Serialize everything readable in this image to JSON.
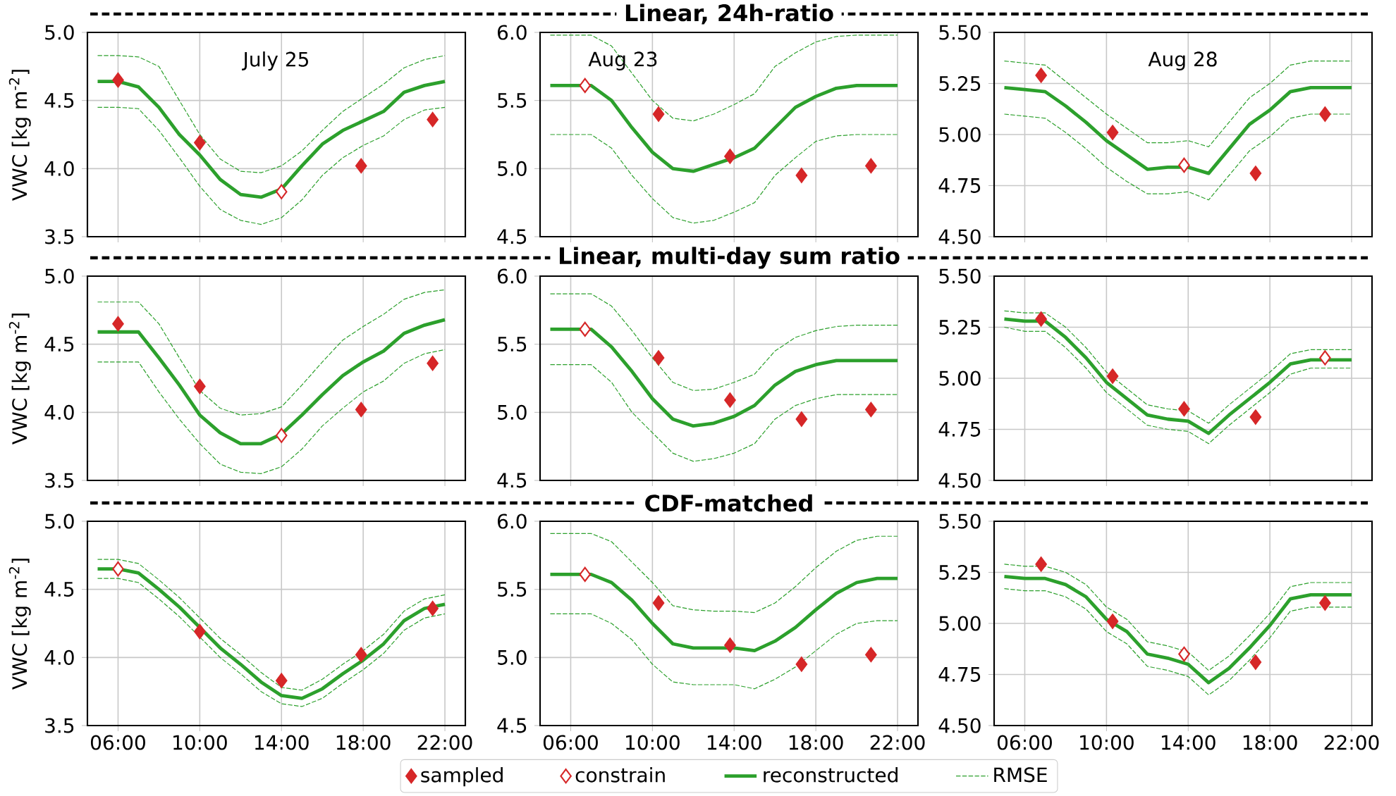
{
  "chart_data": [
    {
      "type": "line",
      "ylabel": "VWC [kg m$^{-2}$]",
      "annotations": [
        "July 25"
      ],
      "x": [
        5,
        6,
        7,
        8,
        9,
        10,
        11,
        12,
        13,
        14,
        15,
        16,
        17,
        18,
        19,
        20,
        21,
        22
      ],
      "xlim": [
        4.5,
        23
      ],
      "ylim": [
        3.5,
        5.0
      ],
      "xticks": [
        {
          "value": 6,
          "label": null
        },
        {
          "value": 10,
          "label": null
        },
        {
          "value": 14,
          "label": null
        },
        {
          "value": 18,
          "label": null
        },
        {
          "value": 22,
          "label": null
        }
      ],
      "yticks": [
        3.5,
        {
          "value": 4,
          "label": "4.0"
        },
        4.5,
        {
          "value": 5,
          "label": "5.0"
        }
      ],
      "grid": true,
      "tick_labels": "y",
      "series": [
        {
          "type": "line",
          "color": "#2ca02c",
          "line_style": "dashed",
          "values": [
            4.45,
            4.45,
            4.44,
            4.28,
            4.08,
            3.87,
            3.7,
            3.62,
            3.59,
            3.64,
            3.77,
            3.95,
            4.08,
            4.17,
            4.24,
            4.36,
            4.43,
            4.45
          ]
        },
        {
          "type": "line",
          "color": "#2ca02c",
          "line_style": "dashed",
          "values": [
            4.83,
            4.83,
            4.82,
            4.75,
            4.5,
            4.25,
            4.07,
            3.98,
            3.97,
            4.02,
            4.13,
            4.28,
            4.42,
            4.52,
            4.62,
            4.74,
            4.8,
            4.83
          ]
        },
        {
          "type": "line",
          "color": "#2ca02c",
          "line_style": "solid",
          "values": [
            4.64,
            4.64,
            4.6,
            4.45,
            4.25,
            4.1,
            3.92,
            3.81,
            3.79,
            3.85,
            4.02,
            4.18,
            4.28,
            4.35,
            4.42,
            4.56,
            4.61,
            4.64
          ]
        },
        {
          "type": "scatter",
          "color": "#d62728",
          "marker": "diamond",
          "x": [
            14
          ],
          "values": [
            3.83
          ]
        },
        {
          "type": "scatter",
          "color": "#d62728",
          "marker": "diamond",
          "x": [
            6,
            10,
            17.9,
            21.4
          ],
          "values": [
            4.65,
            4.19,
            4.02,
            4.36
          ]
        }
      ]
    },
    {
      "type": "line",
      "title": "Linear, 24h-ratio",
      "annotations": [
        "Aug 23"
      ],
      "x": [
        5,
        6,
        7,
        8,
        9,
        10,
        11,
        12,
        13,
        14,
        15,
        16,
        17,
        18,
        19,
        20,
        21,
        22
      ],
      "xlim": [
        4.5,
        23
      ],
      "ylim": [
        4.5,
        6.0
      ],
      "xticks": [
        {
          "value": 6,
          "label": null
        },
        {
          "value": 10,
          "label": null
        },
        {
          "value": 14,
          "label": null
        },
        {
          "value": 18,
          "label": null
        },
        {
          "value": 22,
          "label": null
        }
      ],
      "yticks": [
        4.5,
        {
          "value": 5,
          "label": "5.0"
        },
        5.5,
        {
          "value": 6,
          "label": "6.0"
        }
      ],
      "grid": true,
      "tick_labels": "y",
      "series": [
        {
          "type": "line",
          "color": "#2ca02c",
          "line_style": "dashed",
          "values": [
            5.25,
            5.25,
            5.25,
            5.15,
            4.95,
            4.78,
            4.64,
            4.6,
            4.62,
            4.68,
            4.75,
            4.95,
            5.08,
            5.2,
            5.24,
            5.25,
            5.25,
            5.25
          ]
        },
        {
          "type": "line",
          "color": "#2ca02c",
          "line_style": "dashed",
          "values": [
            5.98,
            5.98,
            5.98,
            5.9,
            5.7,
            5.5,
            5.37,
            5.35,
            5.4,
            5.47,
            5.55,
            5.75,
            5.85,
            5.93,
            5.97,
            5.98,
            5.98,
            5.98
          ]
        },
        {
          "type": "line",
          "color": "#2ca02c",
          "line_style": "solid",
          "values": [
            5.61,
            5.61,
            5.61,
            5.5,
            5.3,
            5.12,
            5.0,
            4.98,
            5.03,
            5.08,
            5.15,
            5.3,
            5.45,
            5.53,
            5.59,
            5.61,
            5.61,
            5.61
          ]
        },
        {
          "type": "scatter",
          "color": "#d62728",
          "marker": "diamond",
          "x": [
            6.7
          ],
          "values": [
            5.61
          ]
        },
        {
          "type": "scatter",
          "color": "#d62728",
          "marker": "diamond",
          "x": [
            10.3,
            13.8,
            17.3,
            20.7
          ],
          "values": [
            5.4,
            5.09,
            4.95,
            5.02
          ]
        }
      ]
    },
    {
      "type": "line",
      "annotations": [
        "Aug 28"
      ],
      "x": [
        5,
        6,
        7,
        8,
        9,
        10,
        11,
        12,
        13,
        14,
        15,
        16,
        17,
        18,
        19,
        20,
        21,
        22
      ],
      "xlim": [
        4.5,
        23
      ],
      "ylim": [
        4.5,
        5.5
      ],
      "xticks": [
        {
          "value": 6,
          "label": null
        },
        {
          "value": 10,
          "label": null
        },
        {
          "value": 14,
          "label": null
        },
        {
          "value": 18,
          "label": null
        },
        {
          "value": 22,
          "label": null
        }
      ],
      "yticks": [
        {
          "value": 4.5,
          "label": "4.50"
        },
        4.75,
        {
          "value": 5,
          "label": "5.00"
        },
        5.25,
        {
          "value": 5.5,
          "label": "5.50"
        }
      ],
      "grid": true,
      "tick_labels": "y",
      "series": [
        {
          "type": "line",
          "color": "#2ca02c",
          "line_style": "dashed",
          "values": [
            5.1,
            5.09,
            5.08,
            5.01,
            4.93,
            4.84,
            4.77,
            4.71,
            4.71,
            4.72,
            4.68,
            4.8,
            4.92,
            4.99,
            5.08,
            5.1,
            5.1,
            5.1
          ]
        },
        {
          "type": "line",
          "color": "#2ca02c",
          "line_style": "dashed",
          "values": [
            5.36,
            5.35,
            5.34,
            5.26,
            5.18,
            5.1,
            5.03,
            4.96,
            4.96,
            4.97,
            4.94,
            5.06,
            5.18,
            5.25,
            5.34,
            5.36,
            5.36,
            5.36
          ]
        },
        {
          "type": "line",
          "color": "#2ca02c",
          "line_style": "solid",
          "values": [
            5.23,
            5.22,
            5.21,
            5.14,
            5.06,
            4.97,
            4.9,
            4.83,
            4.84,
            4.84,
            4.81,
            4.93,
            5.05,
            5.12,
            5.21,
            5.23,
            5.23,
            5.23
          ]
        },
        {
          "type": "scatter",
          "color": "#d62728",
          "marker": "diamond",
          "x": [
            13.8
          ],
          "values": [
            4.85
          ]
        },
        {
          "type": "scatter",
          "color": "#d62728",
          "marker": "diamond",
          "x": [
            6.8,
            10.3,
            17.3,
            20.7
          ],
          "values": [
            5.29,
            5.01,
            4.81,
            5.1
          ]
        }
      ]
    },
    {
      "type": "line",
      "ylabel": "VWC [kg m$^{-2}$]",
      "x": [
        5,
        6,
        7,
        8,
        9,
        10,
        11,
        12,
        13,
        14,
        15,
        16,
        17,
        18,
        19,
        20,
        21,
        22
      ],
      "xlim": [
        4.5,
        23
      ],
      "ylim": [
        3.5,
        5.0
      ],
      "xticks": [
        {
          "value": 6,
          "label": null
        },
        {
          "value": 10,
          "label": null
        },
        {
          "value": 14,
          "label": null
        },
        {
          "value": 18,
          "label": null
        },
        {
          "value": 22,
          "label": null
        }
      ],
      "yticks": [
        3.5,
        {
          "value": 4,
          "label": "4.0"
        },
        4.5,
        {
          "value": 5,
          "label": "5.0"
        }
      ],
      "grid": true,
      "tick_labels": "y",
      "series": [
        {
          "type": "line",
          "color": "#2ca02c",
          "line_style": "dashed",
          "values": [
            4.37,
            4.37,
            4.37,
            4.15,
            3.95,
            3.77,
            3.62,
            3.56,
            3.55,
            3.6,
            3.73,
            3.9,
            4.03,
            4.15,
            4.23,
            4.36,
            4.43,
            4.46
          ]
        },
        {
          "type": "line",
          "color": "#2ca02c",
          "line_style": "dashed",
          "values": [
            4.81,
            4.81,
            4.81,
            4.65,
            4.4,
            4.16,
            4.03,
            3.98,
            3.99,
            4.04,
            4.2,
            4.37,
            4.53,
            4.63,
            4.72,
            4.83,
            4.88,
            4.9
          ]
        },
        {
          "type": "line",
          "color": "#2ca02c",
          "line_style": "solid",
          "values": [
            4.59,
            4.59,
            4.59,
            4.4,
            4.2,
            3.98,
            3.85,
            3.77,
            3.77,
            3.84,
            3.98,
            4.13,
            4.27,
            4.37,
            4.45,
            4.58,
            4.64,
            4.68
          ]
        },
        {
          "type": "scatter",
          "color": "#d62728",
          "marker": "diamond",
          "x": [
            14
          ],
          "values": [
            3.83
          ]
        },
        {
          "type": "scatter",
          "color": "#d62728",
          "marker": "diamond",
          "x": [
            6,
            10,
            17.9,
            21.4
          ],
          "values": [
            4.65,
            4.19,
            4.02,
            4.36
          ]
        }
      ]
    },
    {
      "type": "line",
      "title": "Linear, multi-day sum ratio",
      "x": [
        5,
        6,
        7,
        8,
        9,
        10,
        11,
        12,
        13,
        14,
        15,
        16,
        17,
        18,
        19,
        20,
        21,
        22
      ],
      "xlim": [
        4.5,
        23
      ],
      "ylim": [
        4.5,
        6.0
      ],
      "xticks": [
        {
          "value": 6,
          "label": null
        },
        {
          "value": 10,
          "label": null
        },
        {
          "value": 14,
          "label": null
        },
        {
          "value": 18,
          "label": null
        },
        {
          "value": 22,
          "label": null
        }
      ],
      "yticks": [
        4.5,
        {
          "value": 5,
          "label": "5.0"
        },
        5.5,
        {
          "value": 6,
          "label": "6.0"
        }
      ],
      "grid": true,
      "tick_labels": "y",
      "series": [
        {
          "type": "line",
          "color": "#2ca02c",
          "line_style": "dashed",
          "values": [
            5.35,
            5.35,
            5.35,
            5.22,
            5.0,
            4.85,
            4.7,
            4.64,
            4.66,
            4.7,
            4.77,
            4.95,
            5.05,
            5.1,
            5.13,
            5.13,
            5.13,
            5.13
          ]
        },
        {
          "type": "line",
          "color": "#2ca02c",
          "line_style": "dashed",
          "values": [
            5.87,
            5.87,
            5.87,
            5.78,
            5.6,
            5.4,
            5.22,
            5.16,
            5.17,
            5.22,
            5.28,
            5.45,
            5.55,
            5.6,
            5.63,
            5.64,
            5.64,
            5.64
          ]
        },
        {
          "type": "line",
          "color": "#2ca02c",
          "line_style": "solid",
          "values": [
            5.61,
            5.61,
            5.61,
            5.48,
            5.3,
            5.1,
            4.95,
            4.9,
            4.92,
            4.97,
            5.05,
            5.2,
            5.3,
            5.35,
            5.38,
            5.38,
            5.38,
            5.38
          ]
        },
        {
          "type": "scatter",
          "color": "#d62728",
          "marker": "diamond",
          "x": [
            6.7
          ],
          "values": [
            5.61
          ]
        },
        {
          "type": "scatter",
          "color": "#d62728",
          "marker": "diamond",
          "x": [
            10.3,
            13.8,
            17.3,
            20.7
          ],
          "values": [
            5.4,
            5.09,
            4.95,
            5.02
          ]
        }
      ]
    },
    {
      "type": "line",
      "x": [
        5,
        6,
        7,
        8,
        9,
        10,
        11,
        12,
        13,
        14,
        15,
        16,
        17,
        18,
        19,
        20,
        21,
        22
      ],
      "xlim": [
        4.5,
        23
      ],
      "ylim": [
        4.5,
        5.5
      ],
      "xticks": [
        {
          "value": 6,
          "label": null
        },
        {
          "value": 10,
          "label": null
        },
        {
          "value": 14,
          "label": null
        },
        {
          "value": 18,
          "label": null
        },
        {
          "value": 22,
          "label": null
        }
      ],
      "yticks": [
        {
          "value": 4.5,
          "label": "4.50"
        },
        4.75,
        {
          "value": 5,
          "label": "5.00"
        },
        5.25,
        {
          "value": 5.5,
          "label": "5.50"
        }
      ],
      "grid": true,
      "tick_labels": "y",
      "series": [
        {
          "type": "line",
          "color": "#2ca02c",
          "line_style": "dashed",
          "values": [
            5.25,
            5.23,
            5.23,
            5.15,
            5.05,
            4.93,
            4.85,
            4.77,
            4.75,
            4.74,
            4.68,
            4.77,
            4.85,
            4.93,
            5.02,
            5.05,
            5.05,
            5.05
          ]
        },
        {
          "type": "line",
          "color": "#2ca02c",
          "line_style": "dashed",
          "values": [
            5.33,
            5.32,
            5.32,
            5.25,
            5.15,
            5.03,
            4.95,
            4.87,
            4.85,
            4.84,
            4.78,
            4.87,
            4.95,
            5.03,
            5.12,
            5.14,
            5.14,
            5.14
          ]
        },
        {
          "type": "line",
          "color": "#2ca02c",
          "line_style": "solid",
          "values": [
            5.29,
            5.28,
            5.28,
            5.2,
            5.1,
            4.98,
            4.9,
            4.82,
            4.8,
            4.79,
            4.73,
            4.82,
            4.9,
            4.98,
            5.07,
            5.09,
            5.09,
            5.09
          ]
        },
        {
          "type": "scatter",
          "color": "#d62728",
          "marker": "diamond",
          "x": [
            20.7
          ],
          "values": [
            5.1
          ]
        },
        {
          "type": "scatter",
          "color": "#d62728",
          "marker": "diamond",
          "x": [
            6.8,
            10.3,
            13.8,
            17.3
          ],
          "values": [
            5.29,
            5.01,
            4.85,
            4.81
          ]
        }
      ]
    },
    {
      "type": "line",
      "ylabel": "VWC [kg m$^{-2}$]",
      "x": [
        5,
        6,
        7,
        8,
        9,
        10,
        11,
        12,
        13,
        14,
        15,
        16,
        17,
        18,
        19,
        20,
        21,
        22
      ],
      "xlim": [
        4.5,
        23
      ],
      "ylim": [
        3.5,
        5.0
      ],
      "xticks": [
        {
          "value": 6,
          "label": "06:00"
        },
        {
          "value": 10,
          "label": "10:00"
        },
        {
          "value": 14,
          "label": "14:00"
        },
        {
          "value": 18,
          "label": "18:00"
        },
        {
          "value": 22,
          "label": "22:00"
        }
      ],
      "yticks": [
        3.5,
        {
          "value": 4,
          "label": "4.0"
        },
        4.5,
        {
          "value": 5,
          "label": "5.0"
        }
      ],
      "grid": true,
      "series": [
        {
          "type": "line",
          "color": "#2ca02c",
          "line_style": "dashed",
          "values": [
            4.58,
            4.58,
            4.55,
            4.43,
            4.3,
            4.15,
            4.0,
            3.88,
            3.75,
            3.66,
            3.64,
            3.7,
            3.81,
            3.91,
            4.03,
            4.2,
            4.29,
            4.32
          ]
        },
        {
          "type": "line",
          "color": "#2ca02c",
          "line_style": "dashed",
          "values": [
            4.72,
            4.72,
            4.69,
            4.57,
            4.44,
            4.29,
            4.14,
            4.02,
            3.89,
            3.78,
            3.76,
            3.84,
            3.95,
            4.05,
            4.17,
            4.34,
            4.43,
            4.46
          ]
        },
        {
          "type": "line",
          "color": "#2ca02c",
          "line_style": "solid",
          "values": [
            4.65,
            4.65,
            4.62,
            4.5,
            4.37,
            4.22,
            4.07,
            3.95,
            3.82,
            3.72,
            3.7,
            3.77,
            3.88,
            3.98,
            4.1,
            4.27,
            4.36,
            4.39
          ]
        },
        {
          "type": "scatter",
          "color": "#d62728",
          "marker": "diamond",
          "x": [
            6
          ],
          "values": [
            4.65
          ]
        },
        {
          "type": "scatter",
          "color": "#d62728",
          "marker": "diamond",
          "x": [
            10,
            14,
            17.9,
            21.4
          ],
          "values": [
            4.19,
            3.83,
            4.02,
            4.36
          ]
        }
      ]
    },
    {
      "type": "line",
      "title": "CDF-matched",
      "legend": "bottom",
      "x": [
        5,
        6,
        7,
        8,
        9,
        10,
        11,
        12,
        13,
        14,
        15,
        16,
        17,
        18,
        19,
        20,
        21,
        22
      ],
      "xlim": [
        4.5,
        23
      ],
      "ylim": [
        4.5,
        6.0
      ],
      "xticks": [
        {
          "value": 6,
          "label": "06:00"
        },
        {
          "value": 10,
          "label": "10:00"
        },
        {
          "value": 14,
          "label": "14:00"
        },
        {
          "value": 18,
          "label": "18:00"
        },
        {
          "value": 22,
          "label": "22:00"
        }
      ],
      "yticks": [
        4.5,
        {
          "value": 5,
          "label": "5.0"
        },
        5.5,
        {
          "value": 6,
          "label": "6.0"
        }
      ],
      "grid": true,
      "series": [
        {
          "type": "line",
          "color": "#2ca02c",
          "line_style": "dashed",
          "values": [
            5.32,
            5.32,
            5.32,
            5.25,
            5.13,
            4.95,
            4.82,
            4.8,
            4.8,
            4.8,
            4.77,
            4.84,
            4.93,
            5.05,
            5.17,
            5.25,
            5.27,
            5.27
          ]
        },
        {
          "name": "RMSE",
          "type": "line",
          "color": "#2ca02c",
          "line_style": "dashed",
          "values": [
            5.91,
            5.91,
            5.91,
            5.85,
            5.7,
            5.55,
            5.38,
            5.35,
            5.34,
            5.34,
            5.33,
            5.4,
            5.52,
            5.66,
            5.78,
            5.86,
            5.89,
            5.89
          ]
        },
        {
          "name": "reconstructed",
          "type": "line",
          "color": "#2ca02c",
          "line_style": "solid",
          "values": [
            5.61,
            5.61,
            5.61,
            5.55,
            5.42,
            5.25,
            5.1,
            5.07,
            5.07,
            5.07,
            5.05,
            5.12,
            5.22,
            5.35,
            5.47,
            5.55,
            5.58,
            5.58
          ]
        },
        {
          "name": "constrain",
          "type": "scatter",
          "color": "#d62728",
          "marker": "diamond",
          "x": [
            6.7
          ],
          "values": [
            5.61
          ]
        },
        {
          "name": "sampled",
          "type": "scatter",
          "color": "#d62728",
          "marker": "diamond",
          "x": [
            10.3,
            13.8,
            17.3,
            20.7
          ],
          "values": [
            5.4,
            5.09,
            4.95,
            5.02
          ]
        }
      ]
    },
    {
      "type": "line",
      "x": [
        5,
        6,
        7,
        8,
        9,
        10,
        11,
        12,
        13,
        14,
        15,
        16,
        17,
        18,
        19,
        20,
        21,
        22
      ],
      "xlim": [
        4.5,
        23
      ],
      "ylim": [
        4.5,
        5.5
      ],
      "xticks": [
        {
          "value": 6,
          "label": "06:00"
        },
        {
          "value": 10,
          "label": "10:00"
        },
        {
          "value": 14,
          "label": "14:00"
        },
        {
          "value": 18,
          "label": "18:00"
        },
        {
          "value": 22,
          "label": "22:00"
        }
      ],
      "yticks": [
        {
          "value": 4.5,
          "label": "4.50"
        },
        4.75,
        {
          "value": 5,
          "label": "5.00"
        },
        5.25,
        {
          "value": 5.5,
          "label": "5.50"
        }
      ],
      "grid": true,
      "series": [
        {
          "type": "line",
          "color": "#2ca02c",
          "line_style": "dashed",
          "values": [
            5.17,
            5.16,
            5.16,
            5.13,
            5.07,
            4.96,
            4.9,
            4.79,
            4.77,
            4.74,
            4.65,
            4.72,
            4.82,
            4.93,
            5.06,
            5.08,
            5.08,
            5.08
          ]
        },
        {
          "type": "line",
          "color": "#2ca02c",
          "line_style": "dashed",
          "values": [
            5.29,
            5.28,
            5.28,
            5.25,
            5.19,
            5.08,
            5.02,
            4.91,
            4.89,
            4.86,
            4.77,
            4.84,
            4.94,
            5.05,
            5.18,
            5.2,
            5.2,
            5.2
          ]
        },
        {
          "type": "line",
          "color": "#2ca02c",
          "line_style": "solid",
          "values": [
            5.23,
            5.22,
            5.22,
            5.19,
            5.13,
            5.02,
            4.96,
            4.85,
            4.83,
            4.8,
            4.71,
            4.78,
            4.88,
            4.99,
            5.12,
            5.14,
            5.14,
            5.14
          ]
        },
        {
          "type": "scatter",
          "color": "#d62728",
          "marker": "diamond",
          "x": [
            13.8
          ],
          "values": [
            4.85
          ]
        },
        {
          "type": "scatter",
          "color": "#d62728",
          "marker": "diamond",
          "x": [
            6.8,
            10.3,
            17.3,
            20.7
          ],
          "values": [
            5.29,
            5.01,
            4.81,
            5.1
          ]
        }
      ]
    }
  ]
}
